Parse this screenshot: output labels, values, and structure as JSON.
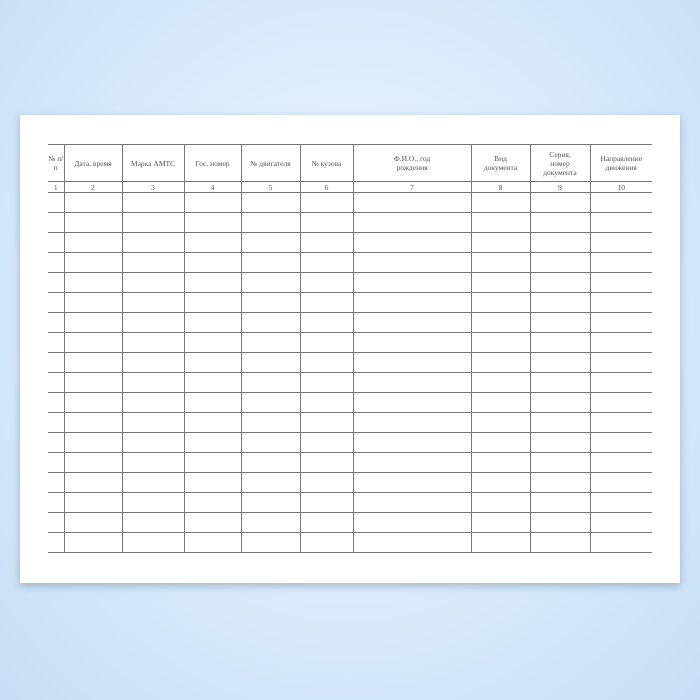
{
  "document": {
    "columns": [
      {
        "header": "№ п/п",
        "number": "1"
      },
      {
        "header": "Дата, время",
        "number": "2"
      },
      {
        "header": "Марка АМТС",
        "number": "3"
      },
      {
        "header": "Гос. номер",
        "number": "4"
      },
      {
        "header": "№ двигателя",
        "number": "5"
      },
      {
        "header": "№ кузова",
        "number": "6"
      },
      {
        "header": "Ф.И.О., год рождения",
        "number": "7"
      },
      {
        "header": "Вид документа",
        "number": "8"
      },
      {
        "header": "Серия, номер документа",
        "number": "9"
      },
      {
        "header": "Направление движения",
        "number": "10"
      }
    ],
    "empty_rows": 18
  }
}
